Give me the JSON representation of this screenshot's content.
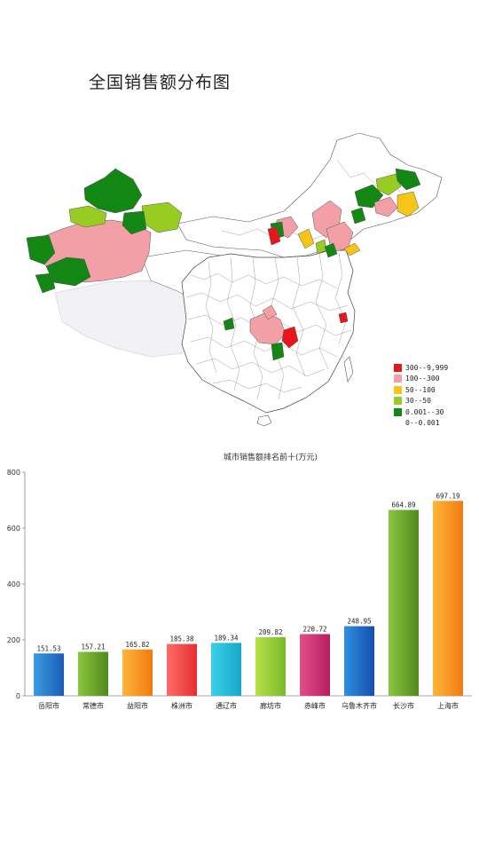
{
  "page_title": "全国销售额分布图",
  "map": {
    "legend": [
      {
        "label": "300--9,999",
        "color": "#e8161b"
      },
      {
        "label": "100--300",
        "color": "#f2a0a5"
      },
      {
        "label": "50--100",
        "color": "#f5c518"
      },
      {
        "label": "30--50",
        "color": "#99cc22"
      },
      {
        "label": "0.001--30",
        "color": "#138713"
      },
      {
        "label": "0--0.001",
        "color": "none"
      }
    ]
  },
  "chart_data": {
    "type": "bar",
    "title": "城市销售额排名前十(万元)",
    "categories": [
      "岳阳市",
      "常德市",
      "益阳市",
      "株洲市",
      "通辽市",
      "廊坊市",
      "赤峰市",
      "乌鲁木齐市",
      "长沙市",
      "上海市"
    ],
    "values": [
      151.53,
      157.21,
      165.82,
      185.38,
      189.34,
      209.82,
      220.72,
      248.95,
      664.89,
      697.19
    ],
    "value_labels": [
      "151.53",
      "157.21",
      "165.82",
      "185.38",
      "189.34",
      "209.82",
      "220.72",
      "248.95",
      "664.89",
      "697.19"
    ],
    "bar_colors": [
      [
        "#3a9de0",
        "#1a5cb8"
      ],
      [
        "#8cc63f",
        "#4e8a1c"
      ],
      [
        "#ffb53a",
        "#f07b10"
      ],
      [
        "#ff6b6b",
        "#e52f2f"
      ],
      [
        "#3ad0e8",
        "#18a7c9"
      ],
      [
        "#b5e04a",
        "#7cb82a"
      ],
      [
        "#e0508a",
        "#b81d60"
      ],
      [
        "#2f8fe0",
        "#154fb0"
      ],
      [
        "#8cc63f",
        "#4e8a1c"
      ],
      [
        "#ffb53a",
        "#f07b10"
      ]
    ],
    "yticks": [
      "0",
      "200",
      "400",
      "600",
      "800"
    ],
    "ylim": [
      0,
      800
    ]
  }
}
